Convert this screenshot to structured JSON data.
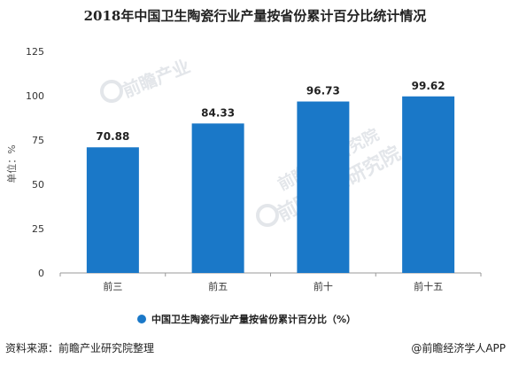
{
  "chart_data": {
    "type": "bar",
    "title": "2018年中国卫生陶瓷行业产量按省份累计百分比统计情况",
    "ylabel": "单位：%",
    "xlabel": "",
    "categories": [
      "前三",
      "前五",
      "前十",
      "前十五"
    ],
    "series": [
      {
        "name": "中国卫生陶瓷行业产量按省份累计百分比（%）",
        "values": [
          70.88,
          84.33,
          96.73,
          99.62
        ]
      }
    ],
    "data_labels": [
      "70.88",
      "84.33",
      "96.73",
      "99.62"
    ],
    "ylim": [
      0,
      125
    ],
    "yticks": [
      0,
      25,
      50,
      75,
      100,
      125
    ],
    "grid": false,
    "legend_position": "bottom-center",
    "bar_color": "#1a78c8"
  },
  "footer": {
    "source": "资料来源：前瞻产业研究院整理",
    "brand": "@前瞻经济学人APP"
  },
  "watermark": {
    "text1": "前瞻产业",
    "text2": "前瞻产业研究院",
    "text3": "前瞻产业研究院"
  },
  "colors": {
    "bar": "#1a78c8",
    "axis": "#999999",
    "watermark": "#e3e6ea"
  }
}
